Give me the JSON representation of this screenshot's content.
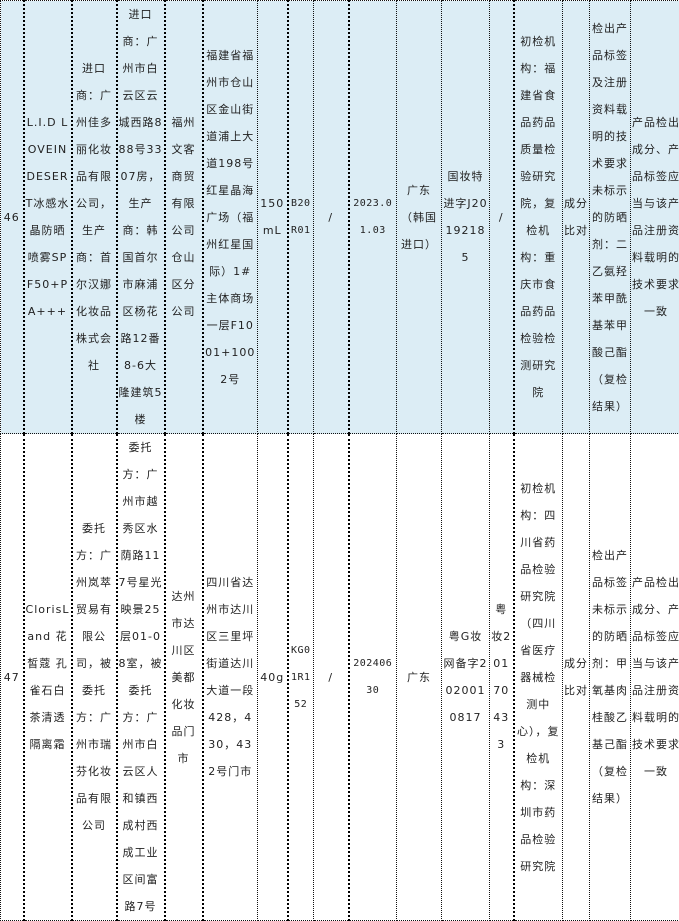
{
  "colors": {
    "row_highlight": "#dcedf5",
    "row_normal": "#ffffff",
    "border": "#111111"
  },
  "rows": [
    {
      "cells": [
        "46",
        "L.I.D LOVEINDESERT冰感水晶防晒喷雾SPF50+PA+++",
        "进口商：广州佳多丽化妆品有限公司，生产商：首尔汉娜化妆品株式会社",
        "进口商：广州市白云区云城西路888号3307房，生产商：韩国首尔市麻浦区杨花路12番8-6大隆建筑5楼",
        "福州文客商贸有限公司仓山区分公司",
        "福建省福州市仓山区金山街道浦上大道198号红星晶海广场（福州红星国际）1#主体商场一层F1001+1002号",
        "150mL",
        "B20R01",
        "/",
        "2023.01.03",
        "广东（韩国进口）",
        "国妆特进字J20192185",
        "/",
        "初检机构：福建省食品药品质量检验研究院，复检机构：重庆市食品药品检验检测研究院",
        "成分比对",
        "检出产品标签及注册资料载明的技术要求未标示的防晒剂：二乙氨羟苯甲酰基苯甲酸己酯（复检结果）",
        "产品检出成分、产品标签应当与该产品注册资料载明的技术要求一致"
      ]
    },
    {
      "cells": [
        "47",
        "ClorisLand 花皙蔻 孔雀石白茶清透隔离霜",
        "委托方：广州岚萃贸易有限公司，被委托方：广州市瑞芬化妆品有限公司",
        "委托方：广州市越秀区水荫路117号星光映景25层01-08室，被委托方：广州市白云区人和镇西成村西成工业区间富路7号",
        "达州市达川区美都化妆品门市",
        "四川省达州市达川区三里坪街道达川大道一段428，430，432号门市",
        "40g",
        "KG01R152",
        "/",
        "20240630",
        "广东",
        "粤G妆网备字2020010817",
        "粤妆20170433",
        "初检机构：四川省药品检验研究院（四川省医疗器械检测中心），复检机构：深圳市药品检验研究院",
        "成分比对",
        "检出产品标签未标示的防晒剂：甲氧基肉桂酸乙基己酯（复检结果）",
        "产品检出成分、产品标签应当与该产品注册资料载明的技术要求一致"
      ]
    }
  ]
}
